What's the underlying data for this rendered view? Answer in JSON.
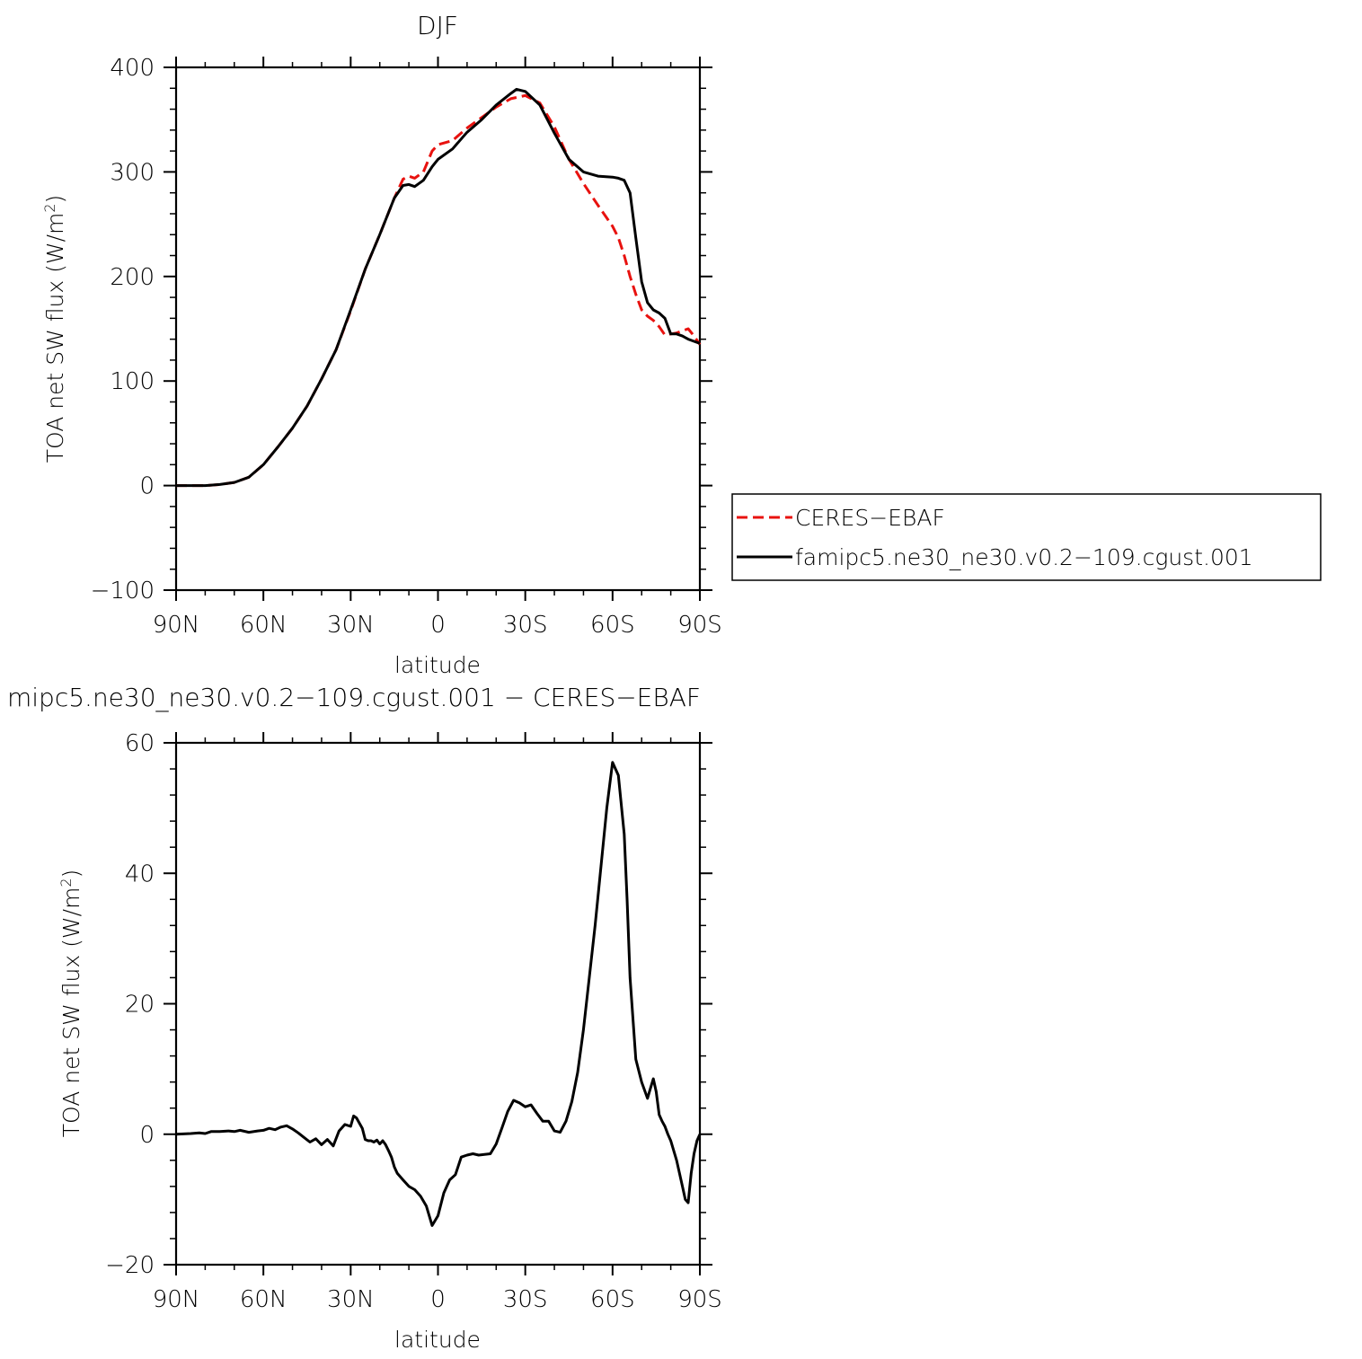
{
  "chart_data": [
    {
      "type": "line",
      "title": "DJF",
      "xlabel": "latitude",
      "ylabel": "TOA net SW flux (W/m",
      "ylabel_sup": "2",
      "ylabel_close": ")",
      "xlim": [
        90,
        -90
      ],
      "ylim": [
        -100,
        400
      ],
      "xticks": [
        90,
        60,
        30,
        0,
        -30,
        -60,
        -90
      ],
      "xtick_labels": [
        "90N",
        "60N",
        "30N",
        "0",
        "30S",
        "60S",
        "90S"
      ],
      "yticks": [
        -100,
        0,
        100,
        200,
        300,
        400
      ],
      "ytick_labels": [
        "−100",
        "0",
        "100",
        "200",
        "300",
        "400"
      ],
      "legend": {
        "placement": "right",
        "entries": [
          "CERES−EBAF",
          "famipc5.ne30_ne30.v0.2−109.cgust.001"
        ]
      },
      "series": [
        {
          "name": "CERES−EBAF",
          "color": "#e8120f",
          "dash": true,
          "x": [
            90,
            85,
            80,
            75,
            70,
            65,
            60,
            55,
            50,
            45,
            40,
            35,
            30,
            25,
            20,
            15,
            12,
            10,
            8,
            5,
            2,
            0,
            -5,
            -10,
            -15,
            -20,
            -25,
            -30,
            -35,
            -40,
            -45,
            -50,
            -55,
            -60,
            -62,
            -64,
            -66,
            -68,
            -70,
            -72,
            -74,
            -76,
            -78,
            -80,
            -82,
            -84,
            -86,
            -88,
            -90
          ],
          "y": [
            0,
            0,
            0,
            1,
            3,
            8,
            20,
            37,
            55,
            76,
            102,
            130,
            167,
            207,
            240,
            275,
            293,
            296,
            294,
            300,
            320,
            326,
            330,
            342,
            352,
            362,
            370,
            373,
            366,
            343,
            312,
            289,
            268,
            248,
            237,
            220,
            200,
            183,
            168,
            162,
            158,
            152,
            144,
            145,
            146,
            148,
            150,
            143,
            135
          ]
        },
        {
          "name": "famipc5.ne30_ne30.v0.2−109.cgust.001",
          "color": "#000000",
          "dash": false,
          "x": [
            90,
            85,
            80,
            75,
            70,
            65,
            60,
            55,
            50,
            45,
            40,
            35,
            30,
            25,
            20,
            15,
            12,
            10,
            8,
            5,
            2,
            0,
            -5,
            -10,
            -15,
            -20,
            -25,
            -27,
            -30,
            -35,
            -40,
            -45,
            -50,
            -55,
            -60,
            -62,
            -64,
            -66,
            -68,
            -70,
            -72,
            -74,
            -76,
            -78,
            -80,
            -82,
            -84,
            -86,
            -88,
            -90
          ],
          "y": [
            0,
            0,
            0,
            1,
            3,
            8,
            20,
            37,
            55,
            76,
            102,
            130,
            168,
            207,
            240,
            275,
            287,
            288,
            286,
            292,
            305,
            312,
            322,
            338,
            350,
            364,
            375,
            379,
            377,
            364,
            337,
            312,
            300,
            296,
            295,
            294,
            292,
            280,
            237,
            195,
            175,
            168,
            165,
            160,
            145,
            145,
            143,
            140,
            138,
            136
          ]
        }
      ]
    },
    {
      "type": "line",
      "title": "mipc5.ne30_ne30.v0.2−109.cgust.001 − CERES−EBAF",
      "xlabel": "latitude",
      "ylabel": "TOA net SW flux (W/m",
      "ylabel_sup": "2",
      "ylabel_close": ")",
      "xlim": [
        90,
        -90
      ],
      "ylim": [
        -20,
        60
      ],
      "xticks": [
        90,
        60,
        30,
        0,
        -30,
        -60,
        -90
      ],
      "xtick_labels": [
        "90N",
        "60N",
        "30N",
        "0",
        "30S",
        "60S",
        "90S"
      ],
      "yticks": [
        -20,
        0,
        20,
        40,
        60
      ],
      "ytick_labels": [
        "−20",
        "0",
        "20",
        "40",
        "60"
      ],
      "series": [
        {
          "color": "#000000",
          "dash": false,
          "x": [
            90,
            85,
            82,
            80,
            78,
            75,
            72,
            70,
            68,
            65,
            62,
            60,
            58,
            56,
            54,
            52,
            50,
            48,
            46,
            44,
            42,
            40,
            38,
            36,
            34,
            32,
            30,
            29,
            28,
            27,
            26,
            25,
            24,
            23,
            22,
            21,
            20,
            19,
            18,
            17,
            16,
            15,
            14,
            12,
            10,
            8,
            6,
            4,
            2,
            0,
            -2,
            -4,
            -6,
            -8,
            -10,
            -12,
            -14,
            -16,
            -18,
            -20,
            -22,
            -24,
            -26,
            -28,
            -30,
            -32,
            -34,
            -36,
            -38,
            -40,
            -42,
            -44,
            -46,
            -48,
            -50,
            -52,
            -54,
            -56,
            -58,
            -60,
            -62,
            -64,
            -65,
            -66,
            -68,
            -70,
            -72,
            -73,
            -74,
            -75,
            -76,
            -77,
            -78,
            -79,
            -80,
            -82,
            -84,
            -85,
            -86,
            -87,
            -88,
            -89,
            -90
          ],
          "y": [
            0,
            0.1,
            0.2,
            0.1,
            0.4,
            0.4,
            0.5,
            0.4,
            0.6,
            0.3,
            0.5,
            0.6,
            0.9,
            0.7,
            1.1,
            1.3,
            0.8,
            0.2,
            -0.5,
            -1.2,
            -0.7,
            -1.6,
            -0.8,
            -1.8,
            0.5,
            1.5,
            1.2,
            2.8,
            2.5,
            1.7,
            0.9,
            -0.8,
            -1.0,
            -1.0,
            -1.2,
            -0.9,
            -1.5,
            -1.0,
            -1.6,
            -2.5,
            -3.5,
            -5.0,
            -6.0,
            -7.0,
            -8.0,
            -8.5,
            -9.5,
            -11.0,
            -14.0,
            -12.5,
            -9.0,
            -7.0,
            -6.2,
            -3.5,
            -3.2,
            -3.0,
            -3.2,
            -3.1,
            -3.0,
            -1.5,
            1.0,
            3.5,
            5.2,
            4.8,
            4.2,
            4.5,
            3.2,
            2.0,
            2.0,
            0.5,
            0.3,
            2.0,
            5.0,
            9.5,
            16,
            24,
            32,
            41,
            50,
            57,
            55,
            46,
            36,
            24,
            11.5,
            8.0,
            5.5,
            7.0,
            8.5,
            6.5,
            3.0,
            2.0,
            1.2,
            0.0,
            -1.0,
            -4.0,
            -8.0,
            -10.0,
            -10.5,
            -6.0,
            -3.0,
            -1.0,
            0.0
          ]
        }
      ]
    }
  ]
}
